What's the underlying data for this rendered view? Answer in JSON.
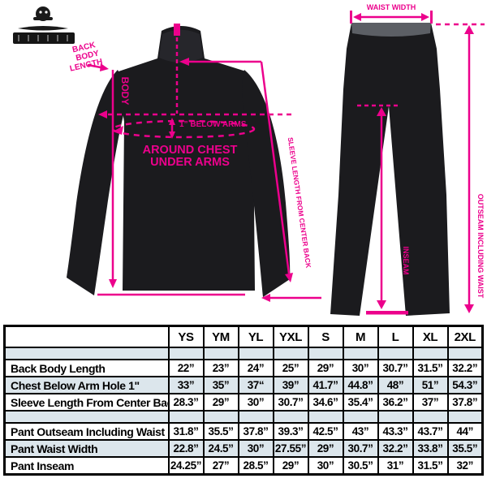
{
  "colors": {
    "accent_pink": "#EC008C",
    "row_stripe_blue": "#DCE6EC",
    "garment_black": "#1B1B1E"
  },
  "diagram": {
    "jacket": {
      "back_note_lines": [
        "BACK",
        "BODY",
        "LENGTH"
      ],
      "body_line_label": "BODY",
      "below_arms_label": "1” BELOW ARMS",
      "around_chest_line1": "AROUND CHEST",
      "around_chest_line2": "UNDER ARMS",
      "sleeve_diagonal_label": "SLEEVE LENGTH FROM CENTER BACK"
    },
    "pants": {
      "waist_label": "WAIST WIDTH",
      "outseam_label": "OUTSEAM INCLUDING WAIST",
      "inseam_label": "INSEAM"
    }
  },
  "table": {
    "columns": [
      "YS",
      "YM",
      "YL",
      "YXL",
      "S",
      "M",
      "L",
      "XL",
      "2XL"
    ],
    "rows": [
      {
        "label": "Back Body Length",
        "values": [
          "22”",
          "23”",
          "24”",
          "25”",
          "29”",
          "30”",
          "30.7”",
          "31.5”",
          "32.2”"
        ]
      },
      {
        "label": "Chest Below Arm Hole 1\"",
        "values": [
          "33”",
          "35”",
          "37“",
          "39”",
          "41.7”",
          "44.8”",
          "48”",
          "51”",
          "54.3”"
        ]
      },
      {
        "label": "Sleeve Length From Center Back",
        "values": [
          "28.3”",
          "29”",
          "30”",
          "30.7”",
          "34.6”",
          "35.4”",
          "36.2”",
          "37”",
          "37.8”"
        ]
      },
      {
        "label": "Pant Outseam Including Waist",
        "values": [
          "31.8”",
          "35.5”",
          "37.8”",
          "39.3”",
          "42.5”",
          "43”",
          "43.3”",
          "43.7”",
          "44”"
        ]
      },
      {
        "label": "Pant Waist Width",
        "values": [
          "22.8”",
          "24.5”",
          "30”",
          "27.55”",
          "29”",
          "30.7”",
          "32.2”",
          "33.8”",
          "35.5”"
        ]
      },
      {
        "label": "Pant Inseam",
        "values": [
          "24.25”",
          "27”",
          "28.5”",
          "29”",
          "30”",
          "30.5”",
          "31”",
          "31.5”",
          "32”"
        ]
      }
    ]
  }
}
